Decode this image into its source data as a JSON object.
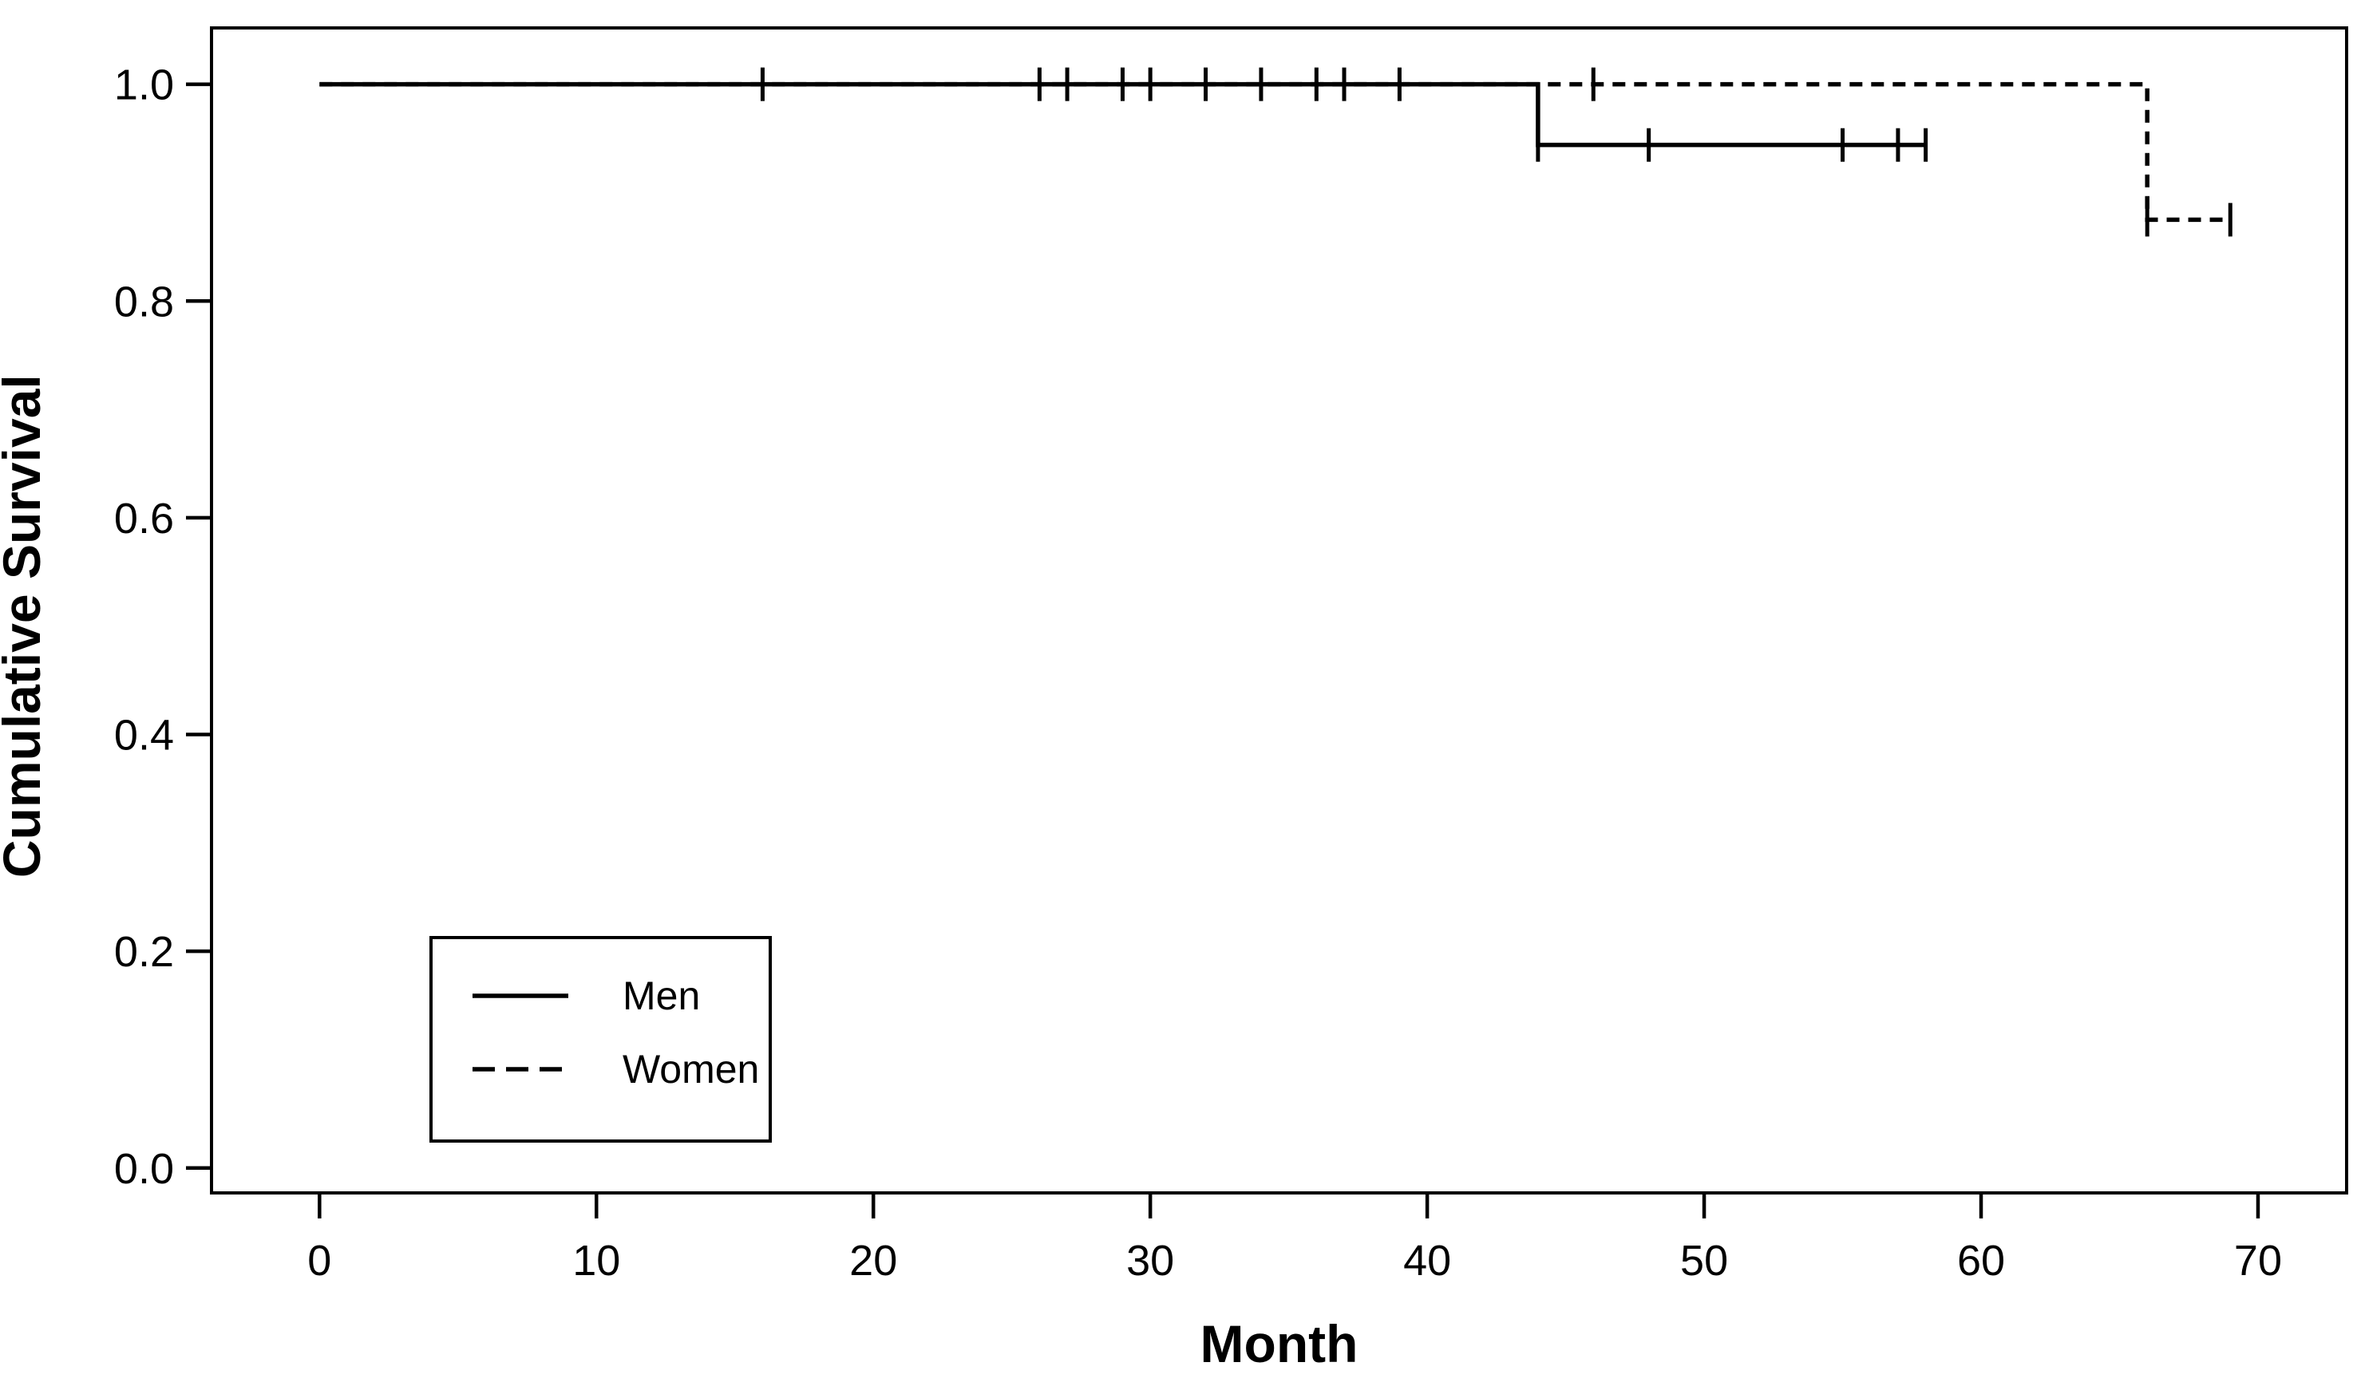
{
  "figure": {
    "background": "#ffffff",
    "line_color": "#000000",
    "frame_color": "#000000"
  },
  "chart_data": {
    "type": "line",
    "subtype": "kaplan_meier_step_survival",
    "title": "",
    "xlabel": "Month",
    "ylabel": "Cumulative Survival",
    "x_ticks": [
      0,
      10,
      20,
      30,
      40,
      50,
      60,
      70
    ],
    "y_ticks": [
      {
        "v": 0.0,
        "label": "0.0"
      },
      {
        "v": 0.2,
        "label": "0.2"
      },
      {
        "v": 0.4,
        "label": "0.4"
      },
      {
        "v": 0.6,
        "label": "0.6"
      },
      {
        "v": 0.8,
        "label": "0.8"
      },
      {
        "v": 1.0,
        "label": "1.0"
      }
    ],
    "xlim": [
      -3.9,
      73.2
    ],
    "ylim": [
      -0.023,
      1.052
    ],
    "grid": false,
    "series": [
      {
        "name": "Men",
        "line_style": "solid",
        "color": "#000000",
        "steps": [
          [
            0,
            1.0
          ],
          [
            44,
            1.0
          ],
          [
            44,
            0.944
          ],
          [
            58,
            0.944
          ]
        ],
        "censored": [
          [
            44,
            0.944
          ],
          [
            48,
            0.944
          ],
          [
            55,
            0.944
          ],
          [
            57,
            0.944
          ],
          [
            58,
            0.944
          ]
        ]
      },
      {
        "name": "Women",
        "line_style": "dashed",
        "color": "#000000",
        "steps": [
          [
            0,
            1.0
          ],
          [
            66,
            1.0
          ],
          [
            66,
            0.875
          ],
          [
            69,
            0.875
          ]
        ],
        "censored": [
          [
            46,
            1.0
          ],
          [
            66,
            0.875
          ],
          [
            69,
            0.875
          ]
        ]
      }
    ],
    "censor_marks_on_overlapped_segment": {
      "value": 1.0,
      "months": [
        16,
        26,
        27,
        29,
        30,
        32,
        34,
        36,
        37,
        39
      ]
    },
    "legend": {
      "position": "inside-bottom-left",
      "entries": [
        {
          "label": "Men",
          "line_style": "solid"
        },
        {
          "label": "Women",
          "line_style": "dashed"
        }
      ]
    }
  }
}
